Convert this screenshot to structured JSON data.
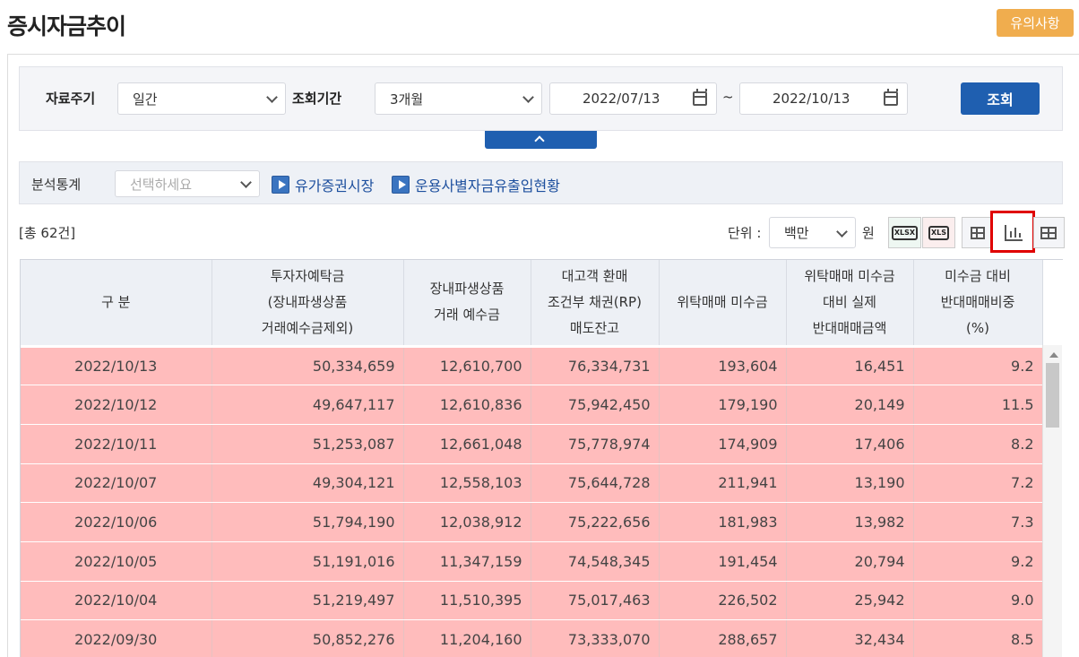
{
  "page": {
    "title": "증시자금추이",
    "notice_label": "유의사항"
  },
  "search": {
    "period_label": "자료주기",
    "period_value": "일간",
    "range_label": "조회기간",
    "range_value": "3개월",
    "date_from": "2022/07/13",
    "date_to": "2022/10/13",
    "tilde": "~",
    "submit_label": "조회"
  },
  "analysis": {
    "label": "분석통계",
    "select_placeholder": "선택하세요",
    "links": [
      "유가증권시장",
      "운용사별자금유출입현황"
    ]
  },
  "toolbar": {
    "total_text": "[총 62건]",
    "unit_label": "단위 :",
    "unit_value": "백만",
    "unit_suffix": "원",
    "export_icons": [
      "xlsx-download-icon",
      "xls-download-icon"
    ],
    "view_icons": [
      "grid-view-icon",
      "chart-view-icon",
      "table-view-icon"
    ],
    "active_view": "chart-view-icon"
  },
  "table": {
    "headers": [
      [
        "구 분"
      ],
      [
        "투자자예탁금",
        "(장내파생상품",
        "거래예수금제외)"
      ],
      [
        "장내파생상품",
        "거래 예수금"
      ],
      [
        "대고객 환매",
        "조건부 채권(RP)",
        "매도잔고"
      ],
      [
        "위탁매매 미수금"
      ],
      [
        "위탁매매 미수금",
        "대비 실제",
        "반대매매금액"
      ],
      [
        "미수금 대비",
        "반대매매비중",
        "(%)"
      ]
    ],
    "rows": [
      [
        "2022/10/13",
        "50,334,659",
        "12,610,700",
        "76,334,731",
        "193,604",
        "16,451",
        "9.2"
      ],
      [
        "2022/10/12",
        "49,647,117",
        "12,610,836",
        "75,942,450",
        "179,190",
        "20,149",
        "11.5"
      ],
      [
        "2022/10/11",
        "51,253,087",
        "12,661,048",
        "75,778,974",
        "174,909",
        "17,406",
        "8.2"
      ],
      [
        "2022/10/07",
        "49,304,121",
        "12,558,103",
        "75,644,728",
        "211,941",
        "13,190",
        "7.2"
      ],
      [
        "2022/10/06",
        "51,794,190",
        "12,038,912",
        "75,222,656",
        "181,983",
        "13,982",
        "7.3"
      ],
      [
        "2022/10/05",
        "51,191,016",
        "11,347,159",
        "74,548,345",
        "191,454",
        "20,794",
        "9.2"
      ],
      [
        "2022/10/04",
        "51,219,497",
        "11,510,395",
        "75,017,463",
        "226,502",
        "25,942",
        "9.0"
      ],
      [
        "2022/09/30",
        "50,852,276",
        "11,204,160",
        "73,333,070",
        "288,657",
        "32,434",
        "8.5"
      ]
    ]
  },
  "colors": {
    "accent": "#1f5fb0",
    "notice": "#f0ad4e",
    "row_highlight": "#ffbcbc",
    "header_bg": "#edf0f5",
    "active_outline": "#e00000"
  }
}
